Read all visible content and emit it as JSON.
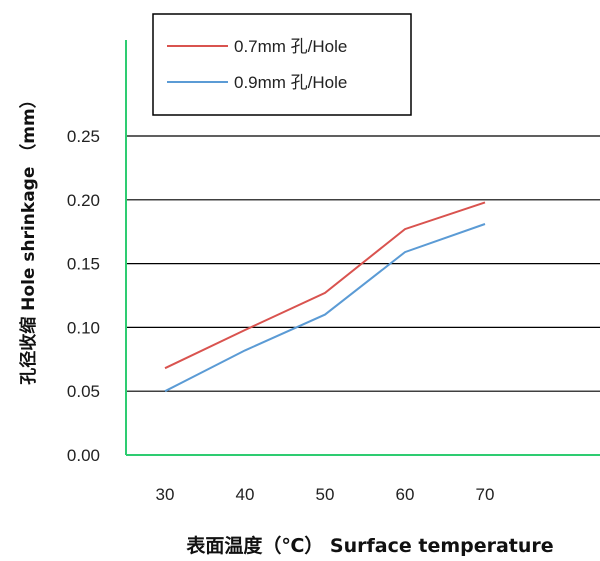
{
  "chart_data": {
    "type": "line",
    "title": "",
    "xlabel": "表面温度（℃） Surface temperature",
    "ylabel": "孔径收缩 Hole shrinkage （mm）",
    "x": [
      30,
      40,
      50,
      60,
      70
    ],
    "xticks": [
      "30",
      "40",
      "50",
      "60",
      "70"
    ],
    "yticks": [
      "0.00",
      "0.05",
      "0.10",
      "0.15",
      "0.20",
      "0.25"
    ],
    "ylim": [
      0,
      0.25
    ],
    "grid": "horizontal",
    "legend_position": "top",
    "series": [
      {
        "name": "0.7mm 孔/Hole",
        "color": "#d9534f",
        "values": [
          0.068,
          0.098,
          0.127,
          0.177,
          0.198
        ]
      },
      {
        "name": "0.9mm 孔/Hole",
        "color": "#5b9bd5",
        "values": [
          0.05,
          0.082,
          0.11,
          0.159,
          0.181
        ]
      }
    ],
    "colors": {
      "axis": "#2ecc71",
      "grid": "#000000"
    }
  }
}
